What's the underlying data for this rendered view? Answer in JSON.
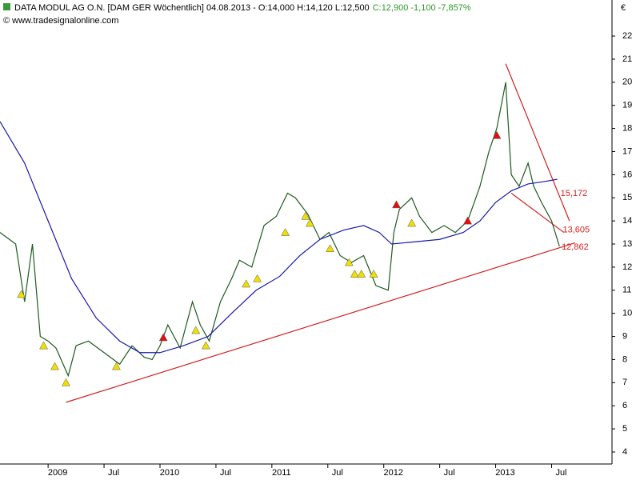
{
  "chart_data": {
    "type": "line",
    "title": "DATA MODUL AG O.N. [DAM GER  Wöchentlich] 04.08.2013 - O:14,000 H:14,120 L:12,500",
    "title_change": "C:12,900 -1,100 -7,857%",
    "source": "© www.tradesignalonline.com",
    "currency_label": "€",
    "xlim": [
      2008.57,
      2014.04
    ],
    "ylim": [
      3.48,
      23.56
    ],
    "yticks": [
      4,
      5,
      6,
      7,
      8,
      9,
      10,
      11,
      12,
      13,
      14,
      15,
      16,
      17,
      18,
      19,
      20,
      21,
      22
    ],
    "xticks": [
      2009,
      {
        "value": 2009.5,
        "label": "Jul"
      },
      2010,
      {
        "value": 2010.5,
        "label": "Jul"
      },
      2011,
      {
        "value": 2011.5,
        "label": "Jul"
      },
      2012,
      {
        "value": 2012.5,
        "label": "Jul"
      },
      2013,
      {
        "value": 2013.5,
        "label": "Jul"
      }
    ],
    "series": [
      {
        "color": "#1f5a1f",
        "x": [
          2008.57,
          2008.71,
          2008.79,
          2008.86,
          2008.93,
          2009.0,
          2009.07,
          2009.18,
          2009.25,
          2009.36,
          2009.5,
          2009.64,
          2009.75,
          2009.86,
          2009.93,
          2010.0,
          2010.07,
          2010.18,
          2010.29,
          2010.36,
          2010.44,
          2010.54,
          2010.64,
          2010.71,
          2010.82,
          2010.93,
          2011.04,
          2011.14,
          2011.21,
          2011.32,
          2011.43,
          2011.51,
          2011.61,
          2011.71,
          2011.82,
          2011.93,
          2012.04,
          2012.09,
          2012.14,
          2012.25,
          2012.32,
          2012.43,
          2012.54,
          2012.64,
          2012.75,
          2012.86,
          2012.94,
          2013.01,
          2013.09,
          2013.14,
          2013.21,
          2013.29,
          2013.34,
          2013.41,
          2013.5,
          2013.57
        ],
        "values": [
          13.5,
          13,
          10.5,
          13,
          9,
          8.8,
          8.5,
          7.3,
          8.6,
          8.8,
          8.3,
          7.8,
          8.6,
          8.1,
          8,
          8.6,
          9.5,
          8.5,
          10.5,
          9.5,
          8.8,
          10.5,
          11.5,
          12.3,
          12,
          13.8,
          14.2,
          15.2,
          15,
          14.3,
          13.2,
          13.5,
          12.5,
          12.2,
          12.5,
          11.2,
          11,
          13.5,
          14.5,
          15,
          14.2,
          13.5,
          13.8,
          13.5,
          14,
          15.5,
          17,
          18,
          20,
          16,
          15.5,
          16.5,
          15.5,
          14.8,
          14,
          12.9
        ]
      },
      {
        "color": "#1a1aa8",
        "x": [
          2008.57,
          2008.79,
          2009.0,
          2009.21,
          2009.43,
          2009.64,
          2009.82,
          2010.0,
          2010.21,
          2010.43,
          2010.64,
          2010.86,
          2011.07,
          2011.25,
          2011.43,
          2011.64,
          2011.82,
          2011.96,
          2012.07,
          2012.29,
          2012.5,
          2012.71,
          2012.86,
          2013.0,
          2013.14,
          2013.29,
          2013.43,
          2013.55
        ],
        "values": [
          18.3,
          16.5,
          14,
          11.5,
          9.8,
          8.8,
          8.3,
          8.3,
          8.6,
          9,
          10,
          11,
          11.6,
          12.5,
          13.2,
          13.6,
          13.8,
          13.5,
          13,
          13.1,
          13.2,
          13.5,
          14,
          14.8,
          15.3,
          15.6,
          15.7,
          15.8
        ]
      }
    ],
    "trendlines": [
      {
        "color": "#d42020",
        "x": [
          2009.16,
          2013.71
        ],
        "values": [
          6.15,
          13.05
        ]
      },
      {
        "color": "#d42020",
        "x": [
          2013.09,
          2013.66
        ],
        "values": [
          20.8,
          14
        ]
      },
      {
        "color": "#d42020",
        "x": [
          2013.14,
          2013.61
        ],
        "values": [
          15.2,
          13.5
        ]
      }
    ],
    "signals_buy": {
      "color": "#f0e000",
      "x": [
        2008.76,
        2008.96,
        2009.06,
        2009.16,
        2009.61,
        2010.32,
        2010.41,
        2010.77,
        2010.87,
        2011.12,
        2011.3,
        2011.34,
        2011.52,
        2011.69,
        2011.74,
        2011.8,
        2011.91,
        2012.25
      ],
      "values": [
        10.82,
        8.6,
        7.7,
        7.0,
        7.7,
        9.26,
        8.6,
        11.27,
        11.5,
        13.5,
        14.2,
        13.9,
        12.8,
        12.2,
        11.7,
        11.7,
        11.7,
        13.9
      ]
    },
    "signals_sell": {
      "color": "#e01010",
      "x": [
        2010.03,
        2012.113,
        2012.75,
        2013.01
      ],
      "values": [
        8.95,
        14.7,
        14.0,
        17.7
      ]
    },
    "annotations": [
      {
        "x": 2013.58,
        "value": 15.172,
        "label": "15,172"
      },
      {
        "x": 2013.6,
        "value": 13.605,
        "label": "13,605"
      },
      {
        "x": 2013.59,
        "value": 12.862,
        "label": "12,862"
      }
    ],
    "annotation_color": "#d42020"
  }
}
